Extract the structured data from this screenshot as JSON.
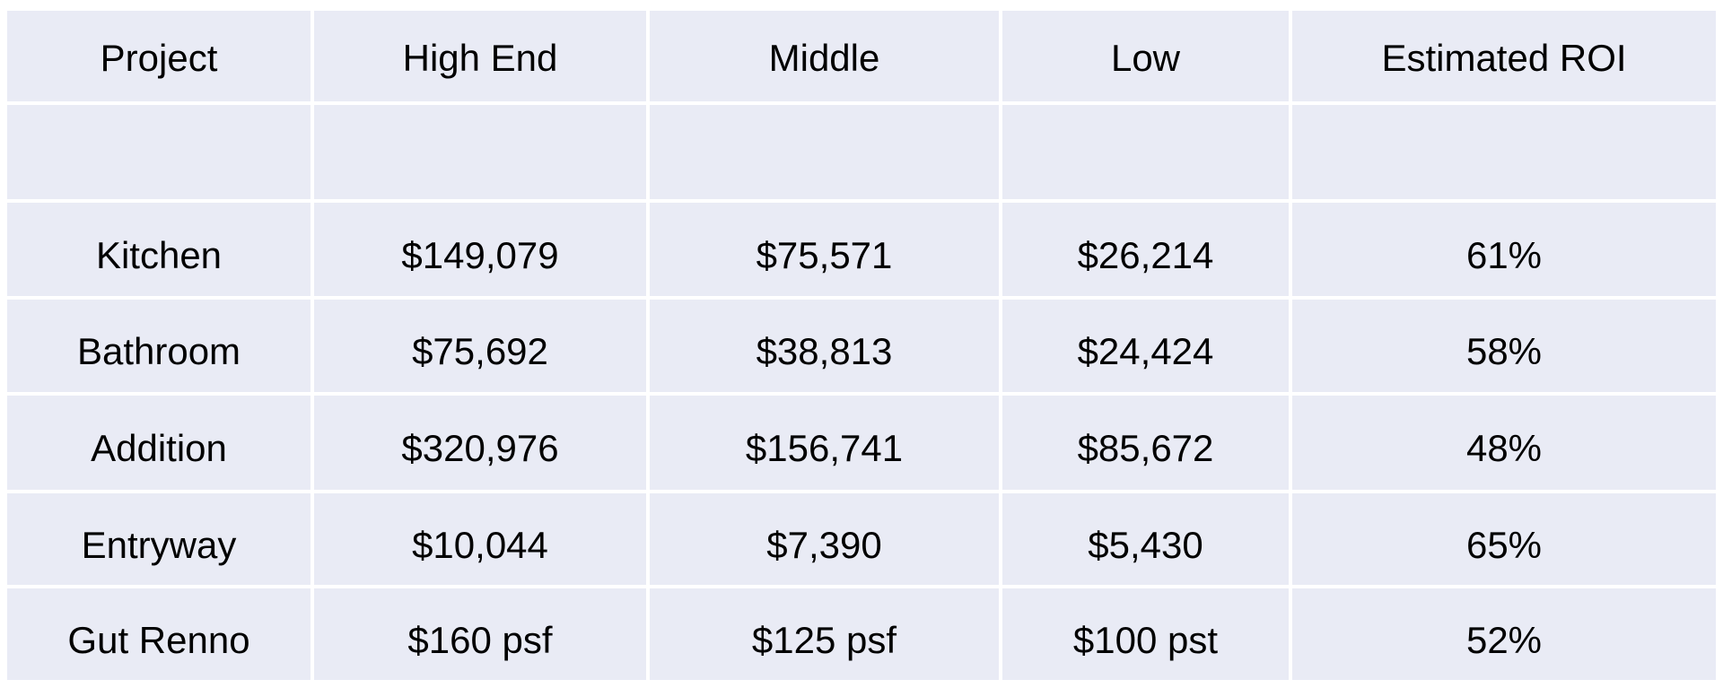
{
  "chart_data": {
    "type": "table",
    "title": "",
    "columns": [
      "Project",
      "High End",
      "Middle",
      "Low",
      "Estimated ROI"
    ],
    "spacer_row_after_header": true,
    "rows": [
      [
        "Kitchen",
        "$149,079",
        "$75,571",
        "$26,214",
        "61%"
      ],
      [
        "Bathroom",
        "$75,692",
        "$38,813",
        "$24,424",
        "58%"
      ],
      [
        "Addition",
        "$320,976",
        "$156,741",
        "$85,672",
        "48%"
      ],
      [
        "Entryway",
        "$10,044",
        "$7,390",
        "$5,430",
        "65%"
      ],
      [
        "Gut Renno",
        "$160 psf",
        "$125 psf",
        "$100 pst",
        "52%"
      ]
    ],
    "colors": {
      "cell_fill": "#e9ebf5",
      "gridline": "#ffffff",
      "text": "#000000",
      "page_background": "#ffffff"
    },
    "layout": {
      "grid_visible": true,
      "text_alignment": "center"
    }
  }
}
